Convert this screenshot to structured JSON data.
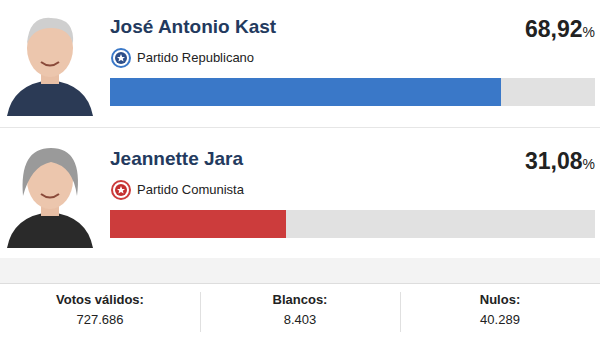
{
  "chart_data": {
    "type": "bar",
    "orientation": "horizontal",
    "categories": [
      "José Antonio Kast",
      "Jeannette Jara"
    ],
    "parties": [
      "Partido Republicano",
      "Partido Comunista"
    ],
    "values": [
      68.92,
      31.08
    ],
    "value_labels": [
      "68,92%",
      "31,08%"
    ],
    "colors": [
      "#3a78c8",
      "#cc3c3c"
    ],
    "xlim": [
      0,
      85.5
    ],
    "data_labels": true,
    "tick_labels": false,
    "footer": [
      {
        "label": "Votos válidos:",
        "value": "727.686"
      },
      {
        "label": "Blancos:",
        "value": "8.403"
      },
      {
        "label": "Nulos:",
        "value": "40.289"
      }
    ]
  }
}
